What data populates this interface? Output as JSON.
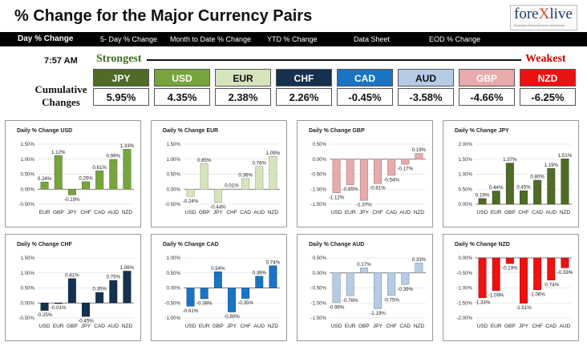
{
  "header": {
    "title": "% Change for the Major Currency Pairs",
    "logo_main": "fore",
    "logo_x": "X",
    "logo_end": "live",
    "logo_sub": "Exclusive financial forex news flows"
  },
  "tabs": [
    {
      "label": "Day % Change"
    },
    {
      "label": "5- Day % Change"
    },
    {
      "label": "Month to Date % Change"
    },
    {
      "label": "YTD % Change"
    },
    {
      "label": "Data Sheet"
    },
    {
      "label": "EOD % Change"
    }
  ],
  "time": "7:57 AM",
  "strongest_label": "Strongest",
  "weakest_label": "Weakest",
  "cumulative_label_1": "Cumulative",
  "cumulative_label_2": "Changes",
  "ranking": [
    {
      "code": "JPY",
      "value": "5.95%",
      "bg": "#4f6b28",
      "fg": "#ffffff"
    },
    {
      "code": "USD",
      "value": "4.35%",
      "bg": "#77a53c",
      "fg": "#ffffff"
    },
    {
      "code": "EUR",
      "value": "2.38%",
      "bg": "#d6e4bc",
      "fg": "#111111"
    },
    {
      "code": "CHF",
      "value": "2.26%",
      "bg": "#16304f",
      "fg": "#ffffff"
    },
    {
      "code": "CAD",
      "value": "-0.45%",
      "bg": "#1a74c4",
      "fg": "#ffffff"
    },
    {
      "code": "AUD",
      "value": "-3.58%",
      "bg": "#b6cbe6",
      "fg": "#111111"
    },
    {
      "code": "GBP",
      "value": "-4.66%",
      "bg": "#e8aaaa",
      "fg": "#ffffff"
    },
    {
      "code": "NZD",
      "value": "-6.25%",
      "bg": "#ee1111",
      "fg": "#ffffff"
    }
  ],
  "chart_data": [
    {
      "type": "bar",
      "title": "Daily % Change USD",
      "categories": [
        "EUR",
        "GBP",
        "JPY",
        "CHF",
        "CAD",
        "AUD",
        "NZD"
      ],
      "values": [
        0.24,
        1.12,
        -0.19,
        0.25,
        0.61,
        0.99,
        1.33
      ],
      "labels": [
        "0.24%",
        "1.12%",
        "-0.19%",
        "0.25%",
        "0.61%",
        "0.99%",
        "1.33%"
      ],
      "ylim": [
        -0.5,
        1.5
      ],
      "ticks": [
        1.5,
        1.0,
        0.5,
        0.0,
        -0.5
      ],
      "tick_labels": [
        "1.50%",
        "1.00%",
        "0.50%",
        "0.00%",
        "-0.50%"
      ],
      "color": "#77a53c"
    },
    {
      "type": "bar",
      "title": "Daily % Change EUR",
      "categories": [
        "USD",
        "GBP",
        "JPY",
        "CHF",
        "CAD",
        "AUD",
        "NZD"
      ],
      "values": [
        -0.24,
        0.85,
        -0.44,
        0.01,
        0.36,
        0.76,
        1.09
      ],
      "labels": [
        "-0.24%",
        "0.85%",
        "-0.44%",
        "0.01%",
        "0.36%",
        "0.76%",
        "1.09%"
      ],
      "ylim": [
        -0.5,
        1.5
      ],
      "ticks": [
        1.5,
        1.0,
        0.5,
        0.0,
        -0.5
      ],
      "tick_labels": [
        "1.50%",
        "1.00%",
        "0.50%",
        "0.00%",
        "-0.50%"
      ],
      "color": "#d6e4bc"
    },
    {
      "type": "bar",
      "title": "Daily % Change GBP",
      "categories": [
        "USD",
        "EUR",
        "JPY",
        "CHF",
        "CAD",
        "AUD",
        "NZD"
      ],
      "values": [
        -1.12,
        -0.85,
        -1.37,
        -0.81,
        -0.54,
        -0.17,
        0.19
      ],
      "labels": [
        "-1.12%",
        "-0.85%",
        "-1.37%",
        "-0.81%",
        "-0.54%",
        "-0.17%",
        "0.19%"
      ],
      "ylim": [
        -1.5,
        0.5
      ],
      "ticks": [
        0.5,
        0.0,
        -0.5,
        -1.0,
        -1.5
      ],
      "tick_labels": [
        "0.50%",
        "0.00%",
        "-0.50%",
        "-1.00%",
        "-1.50%"
      ],
      "color": "#e8aaaa"
    },
    {
      "type": "bar",
      "title": "Daily % Change JPY",
      "categories": [
        "USD",
        "EUR",
        "GBP",
        "CHF",
        "CAD",
        "AUD",
        "NZD"
      ],
      "values": [
        0.19,
        0.44,
        1.37,
        0.45,
        0.8,
        1.19,
        1.51
      ],
      "labels": [
        "0.19%",
        "0.44%",
        "1.37%",
        "0.45%",
        "0.80%",
        "1.19%",
        "1.51%"
      ],
      "ylim": [
        0.0,
        2.0
      ],
      "ticks": [
        2.0,
        1.5,
        1.0,
        0.5,
        0.0
      ],
      "tick_labels": [
        "2.00%",
        "1.50%",
        "1.00%",
        "0.50%",
        "0.00%"
      ],
      "color": "#4f6b28"
    },
    {
      "type": "bar",
      "title": "Daily % Change CHF",
      "categories": [
        "USD",
        "EUR",
        "GBP",
        "JPY",
        "CAD",
        "AUD",
        "NZD"
      ],
      "values": [
        -0.25,
        -0.01,
        0.81,
        -0.45,
        0.35,
        0.75,
        1.06
      ],
      "labels": [
        "-0.25%",
        "-0.01%",
        "0.81%",
        "-0.45%",
        "0.35%",
        "0.75%",
        "1.06%"
      ],
      "ylim": [
        -0.5,
        1.5
      ],
      "ticks": [
        1.5,
        1.0,
        0.5,
        0.0,
        -0.5
      ],
      "tick_labels": [
        "1.50%",
        "1.00%",
        "0.50%",
        "0.00%",
        "-0.50%"
      ],
      "color": "#16304f"
    },
    {
      "type": "bar",
      "title": "Daily % Change CAD",
      "categories": [
        "USD",
        "EUR",
        "GBP",
        "JPY",
        "CHF",
        "AUD",
        "NZD"
      ],
      "values": [
        -0.61,
        -0.36,
        0.54,
        -0.8,
        -0.35,
        0.39,
        0.74
      ],
      "labels": [
        "-0.61%",
        "-0.36%",
        "0.54%",
        "-0.80%",
        "-0.35%",
        "0.39%",
        "0.74%"
      ],
      "ylim": [
        -1.0,
        1.0
      ],
      "ticks": [
        1.0,
        0.5,
        0.0,
        -0.5,
        -1.0
      ],
      "tick_labels": [
        "1.00%",
        "0.50%",
        "0.00%",
        "-0.50%",
        "-1.00%"
      ],
      "color": "#1a74c4"
    },
    {
      "type": "bar",
      "title": "Daily % Change AUD",
      "categories": [
        "USD",
        "EUR",
        "GBP",
        "JPY",
        "CHF",
        "CAD",
        "NZD"
      ],
      "values": [
        -0.99,
        -0.76,
        0.17,
        -1.19,
        -0.75,
        -0.39,
        0.33
      ],
      "labels": [
        "-0.99%",
        "-0.76%",
        "0.17%",
        "-1.19%",
        "-0.75%",
        "-0.39%",
        "0.33%"
      ],
      "ylim": [
        -1.5,
        0.5
      ],
      "ticks": [
        0.5,
        0.0,
        -0.5,
        -1.0,
        -1.5
      ],
      "tick_labels": [
        "0.50%",
        "0.00%",
        "-0.50%",
        "-1.00%",
        "-1.50%"
      ],
      "color": "#b6cbe6"
    },
    {
      "type": "bar",
      "title": "Daily % Change NZD",
      "categories": [
        "USD",
        "EUR",
        "GBP",
        "JPY",
        "CHF",
        "CAD",
        "AUD"
      ],
      "values": [
        -1.33,
        -1.09,
        -0.19,
        -1.51,
        -1.06,
        -0.74,
        -0.33
      ],
      "labels": [
        "-1.33%",
        "-1.09%",
        "-0.19%",
        "-1.51%",
        "-1.06%",
        "-0.74%",
        "-0.33%"
      ],
      "ylim": [
        -2.0,
        0.0
      ],
      "ticks": [
        0.0,
        -0.5,
        -1.0,
        -1.5,
        -2.0
      ],
      "tick_labels": [
        "0.00%",
        "-0.50%",
        "-1.00%",
        "-1.50%",
        "-2.00%"
      ],
      "color": "#ee1111"
    }
  ]
}
